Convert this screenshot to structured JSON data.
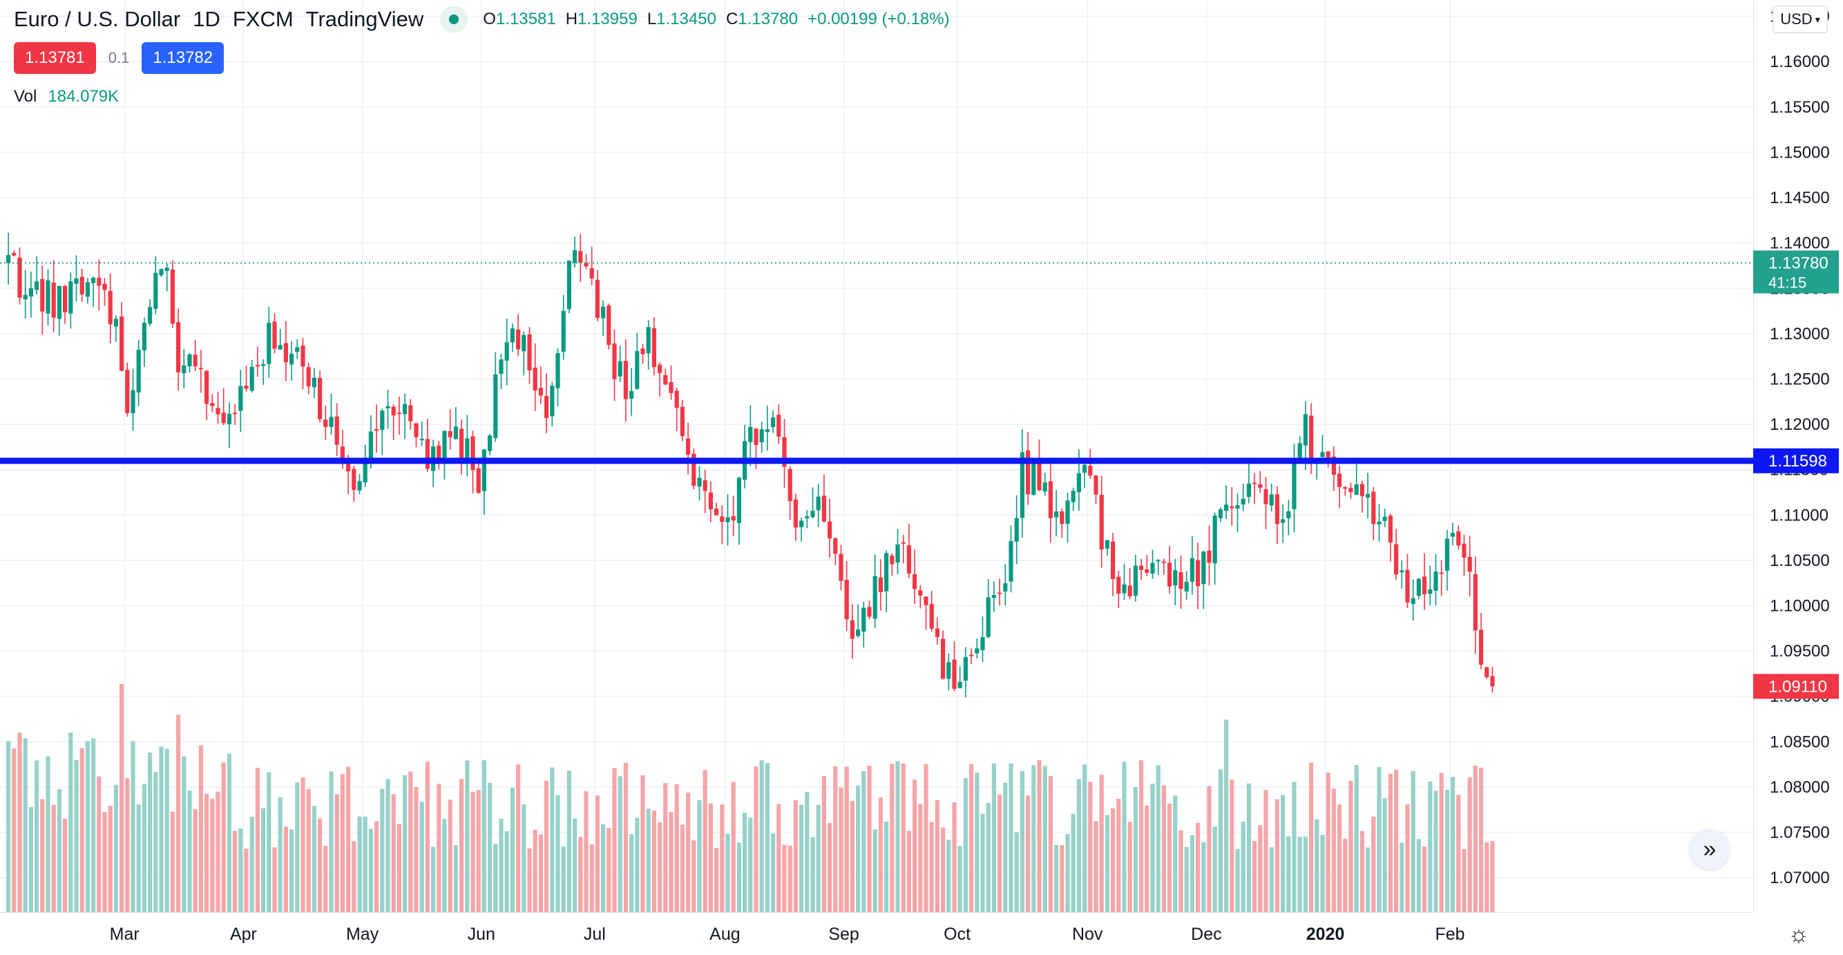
{
  "header": {
    "symbol": "Euro / U.S. Dollar",
    "interval": "1D",
    "exchange": "FXCM",
    "source": "TradingView",
    "status_color": "#089981",
    "open_label": "O",
    "open": "1.13581",
    "high_label": "H",
    "high": "1.13959",
    "low_label": "L",
    "low": "1.13450",
    "close_label": "C",
    "close": "1.13780",
    "change": "+0.00199 (+0.18%)"
  },
  "trading": {
    "sell_price": "1.13781",
    "spread": "0.1",
    "buy_price": "1.13782"
  },
  "volume_legend": {
    "label": "Vol",
    "value": "184.079K"
  },
  "currency_button": "USD",
  "icons": {
    "scroll": "double-chevron-right-icon",
    "settings": "gear-icon"
  },
  "colors": {
    "up": "#089981",
    "down": "#f23645",
    "hline": "#0d18f5",
    "vol_up": "#97d1c9",
    "vol_down": "#f5a5a8",
    "vol_down_strong": "#f3a0a3"
  },
  "chart_data": {
    "type": "candlestick",
    "ylim": [
      1.0662,
      1.1668
    ],
    "y_ticks": [
      "1.16500",
      "1.16000",
      "1.15500",
      "1.15000",
      "1.14500",
      "1.14000",
      "1.13500",
      "1.13000",
      "1.12500",
      "1.12000",
      "1.11500",
      "1.11000",
      "1.10500",
      "1.10000",
      "1.09500",
      "1.09000",
      "1.08500",
      "1.08000",
      "1.07500",
      "1.07000"
    ],
    "x_ticks": [
      {
        "label": "Mar",
        "index": 21,
        "bold": false
      },
      {
        "label": "Apr",
        "index": 42,
        "bold": false
      },
      {
        "label": "May",
        "index": 63,
        "bold": false
      },
      {
        "label": "Jun",
        "index": 84,
        "bold": false
      },
      {
        "label": "Jul",
        "index": 104,
        "bold": false
      },
      {
        "label": "Aug",
        "index": 127,
        "bold": false
      },
      {
        "label": "Sep",
        "index": 148,
        "bold": false
      },
      {
        "label": "Oct",
        "index": 168,
        "bold": false
      },
      {
        "label": "Nov",
        "index": 191,
        "bold": false
      },
      {
        "label": "Dec",
        "index": 212,
        "bold": false
      },
      {
        "label": "2020",
        "index": 233,
        "bold": true
      },
      {
        "label": "Feb",
        "index": 255,
        "bold": false
      }
    ],
    "price_labels": [
      {
        "text": "1.13780",
        "sub": "41:15",
        "value": 1.1378,
        "color": "#22a18c"
      },
      {
        "text": "1.11598",
        "value": 1.11598,
        "color": "#0d18f5"
      },
      {
        "text": "1.09110",
        "value": 1.0911,
        "color": "#f23645"
      }
    ],
    "horizontal_line": 1.11598,
    "last_price_line": 1.1378,
    "monthly_path": [
      [
        0,
        1.138
      ],
      [
        6,
        1.134
      ],
      [
        10,
        1.134
      ],
      [
        16,
        1.136
      ],
      [
        20,
        1.13
      ],
      [
        22,
        1.12
      ],
      [
        24,
        1.13
      ],
      [
        29,
        1.139
      ],
      [
        31,
        1.127
      ],
      [
        35,
        1.124
      ],
      [
        38,
        1.1215
      ],
      [
        42,
        1.122
      ],
      [
        47,
        1.129
      ],
      [
        52,
        1.127
      ],
      [
        56,
        1.122
      ],
      [
        60,
        1.116
      ],
      [
        62,
        1.114
      ],
      [
        66,
        1.12
      ],
      [
        72,
        1.121
      ],
      [
        76,
        1.116
      ],
      [
        80,
        1.119
      ],
      [
        84,
        1.114
      ],
      [
        88,
        1.127
      ],
      [
        92,
        1.13
      ],
      [
        96,
        1.121
      ],
      [
        100,
        1.139
      ],
      [
        103,
        1.136
      ],
      [
        106,
        1.131
      ],
      [
        110,
        1.123
      ],
      [
        114,
        1.129
      ],
      [
        118,
        1.122
      ],
      [
        122,
        1.114
      ],
      [
        126,
        1.112
      ],
      [
        128,
        1.108
      ],
      [
        132,
        1.12
      ],
      [
        136,
        1.119
      ],
      [
        140,
        1.11
      ],
      [
        144,
        1.111
      ],
      [
        150,
        1.098
      ],
      [
        154,
        1.102
      ],
      [
        158,
        1.106
      ],
      [
        162,
        1.103
      ],
      [
        166,
        1.093
      ],
      [
        168,
        1.091
      ],
      [
        172,
        1.097
      ],
      [
        176,
        1.101
      ],
      [
        180,
        1.115
      ],
      [
        184,
        1.113
      ],
      [
        187,
        1.109
      ],
      [
        191,
        1.116
      ],
      [
        194,
        1.108
      ],
      [
        198,
        1.102
      ],
      [
        202,
        1.105
      ],
      [
        206,
        1.102
      ],
      [
        210,
        1.103
      ],
      [
        214,
        1.108
      ],
      [
        218,
        1.112
      ],
      [
        222,
        1.115
      ],
      [
        226,
        1.108
      ],
      [
        229,
        1.12
      ],
      [
        232,
        1.117
      ],
      [
        236,
        1.111
      ],
      [
        240,
        1.114
      ],
      [
        244,
        1.108
      ],
      [
        248,
        1.102
      ],
      [
        252,
        1.103
      ],
      [
        256,
        1.108
      ],
      [
        259,
        1.102
      ],
      [
        262,
        1.0911
      ]
    ],
    "volume_spikes": [
      [
        20,
        1.6
      ],
      [
        30,
        1.5
      ],
      [
        150,
        1.35
      ],
      [
        214,
        2.0
      ],
      [
        215,
        1.45
      ],
      [
        230,
        1.15
      ]
    ],
    "bar_count": 263
  }
}
